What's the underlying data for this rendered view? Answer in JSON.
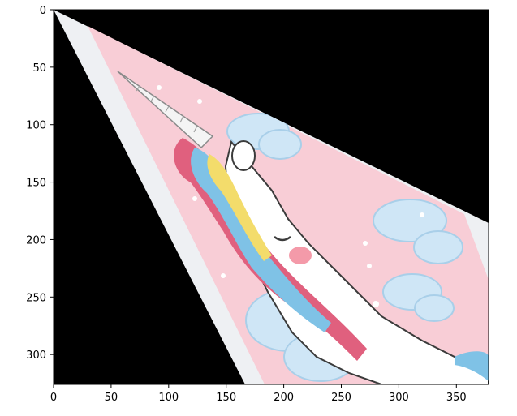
{
  "chart_data": {
    "type": "image",
    "title": "",
    "xlabel": "",
    "ylabel": "",
    "xlim": [
      0,
      378
    ],
    "ylim": [
      326,
      0
    ],
    "x_ticks": [
      0,
      50,
      100,
      150,
      200,
      250,
      300,
      350
    ],
    "y_ticks": [
      0,
      50,
      100,
      150,
      200,
      250,
      300
    ],
    "grid": false,
    "image_content": {
      "description_colors": {
        "background": "#000000",
        "pink": "#f8cdd6",
        "border": "#eef0f3",
        "cloud": "#cfe6f6",
        "unicorn_body": "#ffffff",
        "mane_pink": "#e0607e",
        "mane_blue": "#7fc2e6",
        "mane_yellow": "#f3dc6b",
        "cheek": "#f49aa9",
        "outline": "#3b3b3b"
      }
    }
  }
}
